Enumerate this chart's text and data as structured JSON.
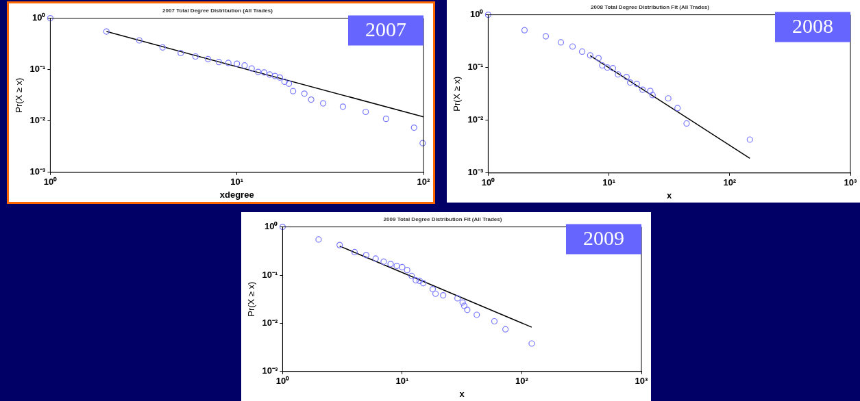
{
  "chart_data": [
    {
      "type": "scatter",
      "title": "2007 Total Degree Distribution (All Trades)",
      "xlabel": "xdegree",
      "ylabel": "Pr(X ≥ x)",
      "annotations": [
        "2007"
      ],
      "log": "xy",
      "grid": false,
      "xlim": [
        1,
        100
      ],
      "xticks": [
        {
          "value": 1,
          "label": "10⁰"
        },
        {
          "value": 10,
          "label": "10¹"
        },
        {
          "value": 100,
          "label": "10²"
        }
      ],
      "ylim": [
        0.001,
        1
      ],
      "yticks": [
        {
          "value": 0.001,
          "label": "10⁻³"
        },
        {
          "value": 0.01,
          "label": "10⁻²"
        },
        {
          "value": 0.1,
          "label": "10⁻¹"
        },
        {
          "value": 1,
          "label": "10⁰"
        }
      ],
      "series": [
        {
          "type": "scatter",
          "marker": "circle",
          "color": "#7777ff",
          "x": [
            1,
            2,
            3,
            4,
            5,
            6,
            7,
            8,
            9,
            10,
            11,
            12,
            13,
            14,
            15,
            16,
            17,
            18,
            19,
            20,
            23,
            25,
            29,
            37,
            49,
            63,
            89,
            99
          ],
          "values": [
            1,
            0.55,
            0.37,
            0.27,
            0.21,
            0.18,
            0.16,
            0.14,
            0.135,
            0.13,
            0.12,
            0.105,
            0.09,
            0.088,
            0.08,
            0.075,
            0.07,
            0.058,
            0.053,
            0.038,
            0.034,
            0.026,
            0.022,
            0.019,
            0.015,
            0.011,
            0.0074,
            0.0037
          ]
        },
        {
          "type": "line",
          "marker": "none",
          "color": "#000000",
          "x": [
            2,
            100
          ],
          "values": [
            0.55,
            0.012
          ]
        }
      ]
    },
    {
      "type": "scatter",
      "title": "2008 Total Degree Distribution Fit (All Trades)",
      "xlabel": "x",
      "ylabel": "Pr(X ≥ x)",
      "annotations": [
        "2008"
      ],
      "log": "xy",
      "grid": false,
      "xlim": [
        1,
        1000
      ],
      "xticks": [
        {
          "value": 1,
          "label": "10⁰"
        },
        {
          "value": 10,
          "label": "10¹"
        },
        {
          "value": 100,
          "label": "10²"
        },
        {
          "value": 1000,
          "label": "10³"
        }
      ],
      "ylim": [
        0.001,
        1
      ],
      "yticks": [
        {
          "value": 0.001,
          "label": "10⁻³"
        },
        {
          "value": 0.01,
          "label": "10⁻²"
        },
        {
          "value": 0.1,
          "label": "10⁻¹"
        },
        {
          "value": 1,
          "label": "10⁰"
        }
      ],
      "series": [
        {
          "type": "scatter",
          "marker": "circle",
          "color": "#7777ff",
          "x": [
            1,
            2,
            3,
            4,
            5,
            6,
            7,
            8.2,
            8.8,
            9.7,
            10.8,
            11.9,
            14,
            15,
            17,
            19,
            22,
            23,
            31,
            37,
            44,
            147
          ],
          "values": [
            1,
            0.51,
            0.39,
            0.3,
            0.25,
            0.2,
            0.17,
            0.15,
            0.11,
            0.1,
            0.097,
            0.074,
            0.066,
            0.052,
            0.049,
            0.038,
            0.036,
            0.03,
            0.026,
            0.017,
            0.0087,
            0.0043
          ]
        },
        {
          "type": "line",
          "marker": "none",
          "color": "#000000",
          "x": [
            7,
            147
          ],
          "values": [
            0.168,
            0.0019
          ]
        }
      ]
    },
    {
      "type": "scatter",
      "title": "2009 Total Degree Distribution Fit (All Trades)",
      "xlabel": "x",
      "ylabel": "Pr(X ≥ x)",
      "annotations": [
        "2009"
      ],
      "log": "xy",
      "grid": false,
      "xlim": [
        1,
        1000
      ],
      "xticks": [
        {
          "value": 1,
          "label": "10⁰"
        },
        {
          "value": 10,
          "label": "10¹"
        },
        {
          "value": 100,
          "label": "10²"
        },
        {
          "value": 1000,
          "label": "10³"
        }
      ],
      "ylim": [
        0.001,
        1
      ],
      "yticks": [
        {
          "value": 0.001,
          "label": "10⁻³"
        },
        {
          "value": 0.01,
          "label": "10⁻²"
        },
        {
          "value": 0.1,
          "label": "10⁻¹"
        },
        {
          "value": 1,
          "label": "10⁰"
        }
      ],
      "series": [
        {
          "type": "scatter",
          "marker": "circle",
          "color": "#7777ff",
          "x": [
            1,
            2,
            3,
            4,
            5,
            6,
            7,
            8,
            9,
            10,
            11,
            12,
            13,
            14,
            15,
            18,
            19,
            22,
            29,
            32,
            33,
            35,
            42,
            59,
            73,
            121
          ],
          "values": [
            1,
            0.55,
            0.42,
            0.3,
            0.26,
            0.22,
            0.19,
            0.17,
            0.155,
            0.146,
            0.127,
            0.096,
            0.078,
            0.076,
            0.068,
            0.051,
            0.041,
            0.038,
            0.033,
            0.027,
            0.023,
            0.019,
            0.015,
            0.011,
            0.0075,
            0.0038
          ]
        },
        {
          "type": "line",
          "marker": "none",
          "color": "#000000",
          "x": [
            3,
            121
          ],
          "values": [
            0.4,
            0.0083
          ]
        }
      ]
    }
  ]
}
